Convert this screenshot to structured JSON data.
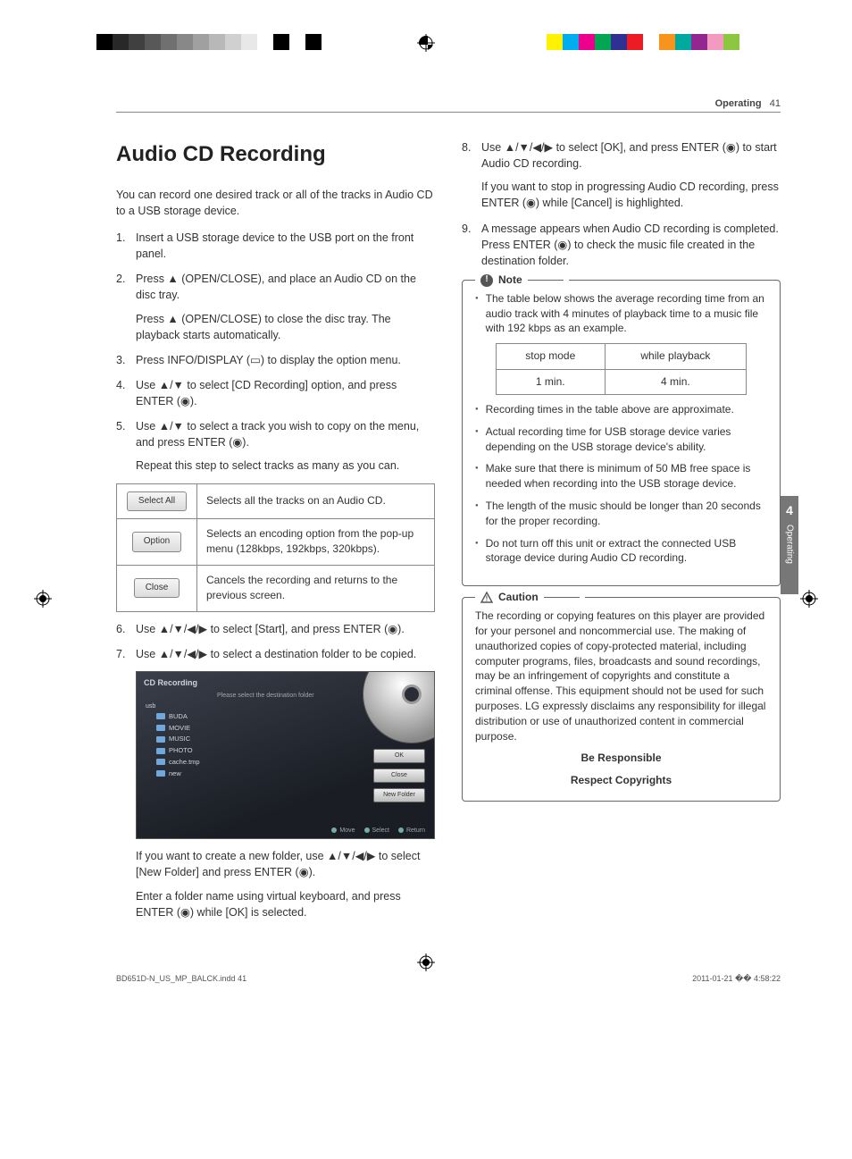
{
  "colorbars": {
    "left": [
      "#000000",
      "#282828",
      "#404040",
      "#585858",
      "#707070",
      "#888888",
      "#a0a0a0",
      "#b8b8b8",
      "#d0d0d0",
      "#e8e8e8",
      "#ffffff",
      "#000000",
      "#ffffff",
      "#000000"
    ],
    "right": [
      "#fff200",
      "#00aeef",
      "#ec008c",
      "#00a651",
      "#2e3192",
      "#ed1c24",
      "#fff",
      "#f7941d",
      "#00a99d",
      "#92278f",
      "#f49ac1",
      "#8dc63f",
      "#fff"
    ]
  },
  "header": {
    "section": "Operating",
    "page": "41"
  },
  "title": "Audio CD Recording",
  "intro": "You can record one desired track or all of the tracks in Audio CD to a USB storage device.",
  "steps_left": [
    {
      "n": "1.",
      "paras": [
        "Insert a USB storage device to the USB port on the front panel."
      ]
    },
    {
      "n": "2.",
      "paras": [
        "Press ▲ (OPEN/CLOSE), and place an Audio CD on the disc tray.",
        "Press ▲ (OPEN/CLOSE) to close the disc tray. The playback starts automatically."
      ]
    },
    {
      "n": "3.",
      "paras": [
        "Press INFO/DISPLAY (▭) to display the option menu."
      ]
    },
    {
      "n": "4.",
      "paras": [
        "Use ▲/▼ to select [CD Recording] option, and press ENTER (◉)."
      ]
    },
    {
      "n": "5.",
      "paras": [
        "Use ▲/▼ to select a track you wish to copy on the menu, and press ENTER (◉).",
        "Repeat this step to select tracks as many as you can."
      ]
    }
  ],
  "opt_table": [
    {
      "btn": "Select All",
      "desc": "Selects all the tracks on an Audio CD."
    },
    {
      "btn": "Option",
      "desc": "Selects an encoding option from the pop-up menu (128kbps, 192kbps, 320kbps)."
    },
    {
      "btn": "Close",
      "desc": "Cancels the recording and returns to the previous screen."
    }
  ],
  "steps_left2": [
    {
      "n": "6.",
      "paras": [
        "Use ▲/▼/◀/▶ to select [Start], and press ENTER (◉)."
      ]
    },
    {
      "n": "7.",
      "paras": [
        "Use ▲/▼/◀/▶ to select a destination folder to be copied."
      ]
    }
  ],
  "screenshot": {
    "title": "CD Recording",
    "prompt": "Please select the destination folder",
    "root": "usb",
    "folders": [
      "BUDA",
      "MOVIE",
      "MUSIC",
      "PHOTO",
      "cache.tmp",
      "new"
    ],
    "buttons": [
      "OK",
      "Close",
      "New Folder"
    ],
    "footer": [
      "Move",
      "Select",
      "Return"
    ]
  },
  "after_ss": [
    "If you want to create a new folder, use ▲/▼/◀/▶ to select [New Folder] and press ENTER (◉).",
    "Enter a folder name using virtual keyboard, and press ENTER (◉) while [OK] is selected."
  ],
  "steps_right": [
    {
      "n": "8.",
      "paras": [
        "Use ▲/▼/◀/▶ to select [OK], and press ENTER (◉) to start Audio CD recording.",
        "If you want to stop in progressing Audio CD recording, press ENTER (◉) while [Cancel] is highlighted."
      ]
    },
    {
      "n": "9.",
      "paras": [
        "A message appears when Audio CD recording is completed. Press ENTER (◉) to check the music file created in the destination folder."
      ]
    }
  ],
  "note": {
    "title": "Note",
    "first": "The table below shows the average recording time from an audio track with 4 minutes of playback time to a music file with 192 kbps as an example.",
    "table": {
      "h1": "stop mode",
      "h2": "while playback",
      "r1": "1 min.",
      "r2": "4 min."
    },
    "items": [
      "Recording times in the table above are approximate.",
      "Actual recording time for USB storage device varies depending on the USB storage device's ability.",
      "Make sure that there is minimum of 50 MB free space is needed when recording into the USB storage device.",
      "The length of the music should be longer than 20 seconds for the proper recording.",
      "Do not turn off this unit or extract the connected USB storage device during Audio CD recording."
    ]
  },
  "caution": {
    "title": "Caution",
    "body": "The recording or copying features on this player are provided for your personel and noncommercial use. The making of unauthorized copies of copy-protected material, including computer programs, files, broadcasts and sound recordings, may be an infringement of copyrights and constitute a criminal offense. This equipment should not be used for such purposes. LG expressly disclaims any responsibility for illegal distribution or use of unauthorized content in commercial purpose.",
    "line1": "Be Responsible",
    "line2": "Respect Copyrights"
  },
  "sidetab": {
    "num": "4",
    "label": "Operating"
  },
  "footer": {
    "file": "BD651D-N_US_MP_BALCK.indd   41",
    "ts": "2011-01-21   �� 4:58:22"
  }
}
